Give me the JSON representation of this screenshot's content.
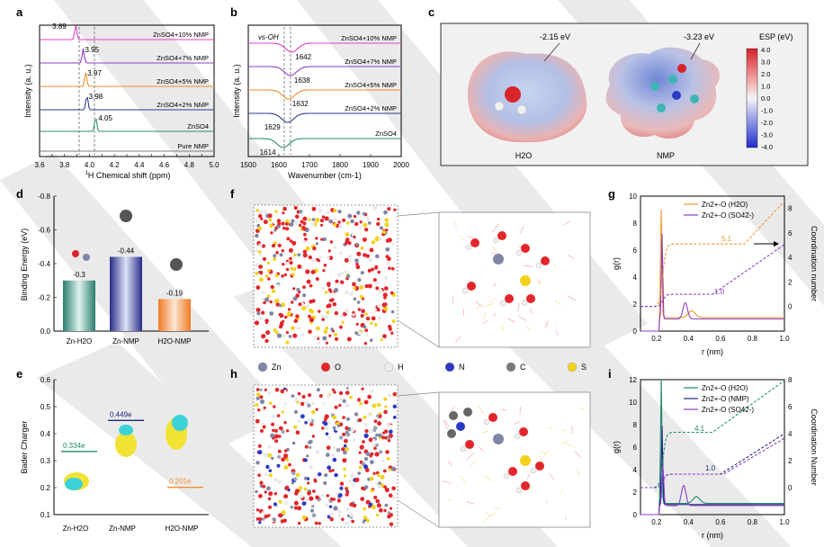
{
  "panel_letters": [
    "a",
    "b",
    "c",
    "d",
    "e",
    "f",
    "g",
    "h",
    "i"
  ],
  "colors": {
    "pure": "#808080",
    "znso4": "#2e8b7a",
    "nmp2": "#2b3a8f",
    "nmp5": "#f28c28",
    "nmp7": "#8a3fc4",
    "nmp10": "#e040c8",
    "h2o_line": "#f0962c",
    "so4_line": "#8a3fc4",
    "nmp_line": "#1c2a7a",
    "h2o_teal": "#1f8a6f"
  },
  "panel_a": {
    "xlabel_prefix": "1",
    "xlabel_main": "H Chemical shift (ppm)",
    "ylabel": "Intensity (a. u.)",
    "xticks": [
      "3.6",
      "3.7",
      "3.8",
      "3.9",
      "4.0",
      "4.1",
      "4.2",
      "4.3",
      "4.4",
      "4.5",
      "4.6",
      "4.7",
      "4.8",
      "4.9",
      "5.0"
    ],
    "series_labels": [
      "ZnSO4+10% NMP",
      "ZnSO4+7% NMP",
      "ZnSO4+5% NMP",
      "ZnSO4+2% NMP",
      "ZnSO4",
      "Pure NMP"
    ],
    "peak_values": [
      "3.89",
      "3.95",
      "3.97",
      "3.98",
      "4.05"
    ]
  },
  "panel_b": {
    "xlabel": "Wavenumber (cm-1)",
    "ylabel": "Intensity (a. u.)",
    "mode_label": "vs-OH",
    "xticks": [
      "1500",
      "1600",
      "1700",
      "1800",
      "1900",
      "2000"
    ],
    "series_labels": [
      "ZnSO4+10% NMP",
      "ZnSO4+7% NMP",
      "ZnSO4+5% NMP",
      "ZnSO4+2% NMP",
      "ZnSO4"
    ],
    "peak_values": [
      "1642",
      "1638",
      "1632",
      "1629",
      "1614"
    ]
  },
  "panel_c": {
    "h2o_energy": "-2.15 eV",
    "nmp_energy": "-3.23 eV",
    "h2o_label": "H2O",
    "nmp_label": "NMP",
    "colorbar_title": "ESP (eV)",
    "colorbar_ticks": [
      "4.0",
      "3.0",
      "2.0",
      "1.0",
      "0.0",
      "-1.0",
      "-2.0",
      "-3.0",
      "-4.0"
    ]
  },
  "chart_data": [
    {
      "type": "bar",
      "panel": "d",
      "ylabel": "Binding Energy (eV)",
      "categories": [
        "Zn-H2O",
        "Zn-NMP",
        "H2O-NMP"
      ],
      "values": [
        -0.3,
        -0.44,
        -0.19
      ],
      "value_labels": [
        "-0.3",
        "-0.44",
        "-0.19"
      ],
      "yticks": [
        "-0.8",
        "-0.6",
        "-0.4",
        "-0.2",
        "0.0"
      ],
      "ylim": [
        0,
        -0.8
      ]
    },
    {
      "type": "scatter",
      "panel": "e",
      "ylabel": "Bader Charger",
      "categories": [
        "Zn-H2O",
        "Zn-NMP",
        "H2O-NMP"
      ],
      "values": [
        0.334,
        0.449,
        0.201
      ],
      "value_labels": [
        "0.334e",
        "0.449e",
        "0.201e"
      ],
      "yticks": [
        "0.6",
        "0.5",
        "0.4",
        "0.3",
        "0.2",
        "0.1"
      ],
      "ylim": [
        0.1,
        0.6
      ]
    },
    {
      "type": "line",
      "panel": "g",
      "xlabel": "r (nm)",
      "ylabel": "g(r)",
      "y2label": "Coordination number",
      "xlim": [
        0.1,
        1.0
      ],
      "ylim": [
        0,
        10
      ],
      "y2lim": [
        -2,
        9
      ],
      "xticks": [
        "0.2",
        "0.4",
        "0.6",
        "0.8",
        "1.0"
      ],
      "yticks": [
        "0",
        "2",
        "4",
        "6",
        "8",
        "10"
      ],
      "y2ticks": [
        "0",
        "2",
        "4",
        "6",
        "8"
      ],
      "legend": [
        "Zn2+-O (H2O)",
        "Zn2+-O (SO42-)"
      ],
      "annotations": [
        "5.1",
        "1.0"
      ]
    },
    {
      "type": "line",
      "panel": "i",
      "xlabel": "r (nm)",
      "ylabel": "g(r)",
      "y2label": "Coordination Number",
      "xlim": [
        0.1,
        1.0
      ],
      "ylim": [
        0,
        12
      ],
      "y2lim": [
        -2,
        8
      ],
      "xticks": [
        "0.2",
        "0.4",
        "0.6",
        "0.8",
        "1.0"
      ],
      "yticks": [
        "0",
        "2",
        "4",
        "6",
        "8",
        "10",
        "12"
      ],
      "y2ticks": [
        "0",
        "2",
        "4",
        "6",
        "8"
      ],
      "legend": [
        "Zn2+-O (H2O)",
        "Zn2+-O (NMP)",
        "Zn2+-O (SO42-)"
      ],
      "annotations": [
        "4.1",
        "1.0"
      ]
    }
  ],
  "legend_atoms": [
    "Zn",
    "O",
    "H",
    "N",
    "C",
    "S"
  ]
}
